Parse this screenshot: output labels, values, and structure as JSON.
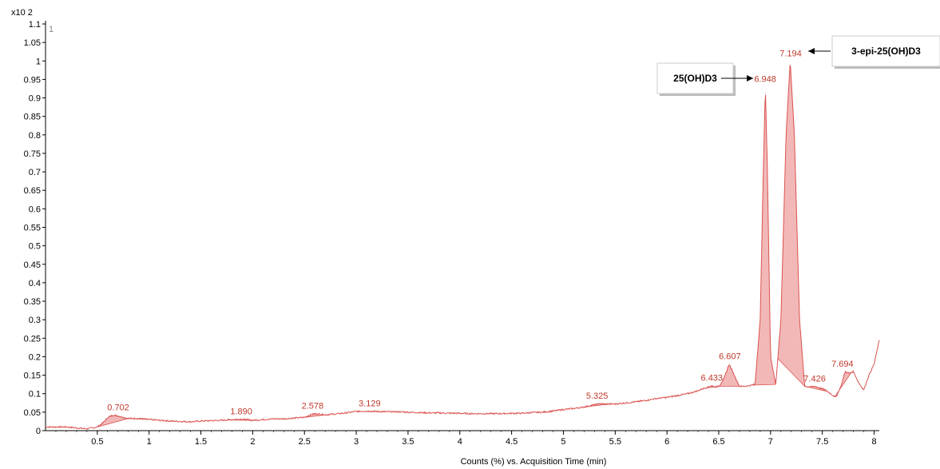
{
  "chart_data": {
    "type": "line",
    "title": "",
    "xlabel": "Counts (%) vs. Acquisition Time (min)",
    "ylabel": "",
    "y_multiplier": "x10 2",
    "plot_index": "1",
    "xlim": [
      0,
      8.05
    ],
    "ylim": [
      0,
      1.1
    ],
    "x_ticks": [
      "0.5",
      "1",
      "1.5",
      "2",
      "2.5",
      "3",
      "3.5",
      "4",
      "4.5",
      "5",
      "5.5",
      "6",
      "6.5",
      "7",
      "7.5",
      "8"
    ],
    "y_ticks": [
      "0",
      "0.05",
      "0.1",
      "0.15",
      "0.2",
      "0.25",
      "0.3",
      "0.35",
      "0.4",
      "0.45",
      "0.5",
      "0.55",
      "0.6",
      "0.65",
      "0.7",
      "0.75",
      "0.8",
      "0.85",
      "0.9",
      "0.95",
      "1",
      "1.05",
      "1.1"
    ],
    "trace_color": "#d9534f",
    "fill_color": "#f2b8b8",
    "series": [
      {
        "x": [
          0.0,
          0.2,
          0.4,
          0.5,
          0.55,
          0.6,
          0.65,
          0.7,
          0.75,
          0.8,
          0.9,
          1.0,
          1.1,
          1.2,
          1.3,
          1.4,
          1.5,
          1.6,
          1.7,
          1.8,
          1.9,
          2.0,
          2.1,
          2.2,
          2.3,
          2.4,
          2.5,
          2.55,
          2.6,
          2.7,
          2.8,
          2.9,
          3.0,
          3.1,
          3.2,
          3.3,
          3.4,
          3.5,
          3.6,
          3.7,
          3.8,
          3.9,
          4.0,
          4.1,
          4.2,
          4.3,
          4.4,
          4.5,
          4.6,
          4.7,
          4.8,
          4.9,
          5.0,
          5.1,
          5.2,
          5.3,
          5.35,
          5.4,
          5.5,
          5.6,
          5.7,
          5.8,
          5.9,
          6.0,
          6.1,
          6.2,
          6.3,
          6.35,
          6.4,
          6.43,
          6.46,
          6.5,
          6.55,
          6.6,
          6.65,
          6.7,
          6.75,
          6.8,
          6.85,
          6.9,
          6.93,
          6.95,
          6.97,
          7.0,
          7.05,
          7.1,
          7.15,
          7.19,
          7.23,
          7.28,
          7.33,
          7.38,
          7.43,
          7.48,
          7.53,
          7.58,
          7.63,
          7.68,
          7.72,
          7.76,
          7.8,
          7.85,
          7.9,
          7.95,
          8.0,
          8.05
        ],
        "y": [
          0.01,
          0.01,
          0.005,
          0.01,
          0.02,
          0.035,
          0.042,
          0.04,
          0.036,
          0.033,
          0.033,
          0.03,
          0.028,
          0.026,
          0.025,
          0.024,
          0.026,
          0.027,
          0.028,
          0.03,
          0.031,
          0.028,
          0.03,
          0.032,
          0.032,
          0.034,
          0.036,
          0.042,
          0.046,
          0.043,
          0.045,
          0.048,
          0.052,
          0.053,
          0.052,
          0.051,
          0.051,
          0.05,
          0.049,
          0.048,
          0.048,
          0.047,
          0.047,
          0.046,
          0.046,
          0.046,
          0.046,
          0.047,
          0.047,
          0.049,
          0.05,
          0.053,
          0.057,
          0.06,
          0.064,
          0.07,
          0.073,
          0.072,
          0.072,
          0.075,
          0.078,
          0.082,
          0.087,
          0.09,
          0.095,
          0.1,
          0.108,
          0.114,
          0.118,
          0.122,
          0.118,
          0.12,
          0.14,
          0.18,
          0.15,
          0.12,
          0.12,
          0.122,
          0.125,
          0.3,
          0.7,
          0.93,
          0.7,
          0.2,
          0.125,
          0.3,
          0.8,
          1.0,
          0.8,
          0.3,
          0.12,
          0.118,
          0.12,
          0.115,
          0.11,
          0.1,
          0.09,
          0.12,
          0.16,
          0.155,
          0.16,
          0.13,
          0.11,
          0.15,
          0.18,
          0.245
        ]
      }
    ],
    "peaks": [
      {
        "rt": 0.702,
        "label": "0.702",
        "height": 0.042,
        "start": 0.5,
        "end": 0.8
      },
      {
        "rt": 0.86,
        "label": "",
        "height": 0.035,
        "start": 0.8,
        "end": 1.0
      },
      {
        "rt": 1.89,
        "label": "1.890",
        "height": 0.031,
        "start": 1.75,
        "end": 2.0
      },
      {
        "rt": 2.578,
        "label": "2.578",
        "height": 0.046,
        "start": 2.5,
        "end": 2.75
      },
      {
        "rt": 3.129,
        "label": "3.129",
        "height": 0.053,
        "start": 3.0,
        "end": 3.3
      },
      {
        "rt": 5.325,
        "label": "5.325",
        "height": 0.073,
        "start": 5.2,
        "end": 5.45
      },
      {
        "rt": 6.433,
        "label": "6.433",
        "height": 0.122,
        "start": 6.35,
        "end": 6.5
      },
      {
        "rt": 6.607,
        "label": "6.607",
        "height": 0.18,
        "start": 6.5,
        "end": 6.72
      },
      {
        "rt": 6.948,
        "label": "6.948",
        "height": 0.93,
        "start": 6.82,
        "end": 7.05
      },
      {
        "rt": 7.194,
        "label": "7.194",
        "height": 1.0,
        "start": 7.07,
        "end": 7.33
      },
      {
        "rt": 7.426,
        "label": "7.426",
        "height": 0.12,
        "start": 7.33,
        "end": 7.55
      },
      {
        "rt": 7.694,
        "label": "7.694",
        "height": 0.16,
        "start": 7.62,
        "end": 7.78
      }
    ],
    "annotations": [
      {
        "text": "25(OH)D3",
        "points_to": 6.948
      },
      {
        "text": "3-epi-25(OH)D3",
        "points_to": 7.194
      }
    ]
  }
}
